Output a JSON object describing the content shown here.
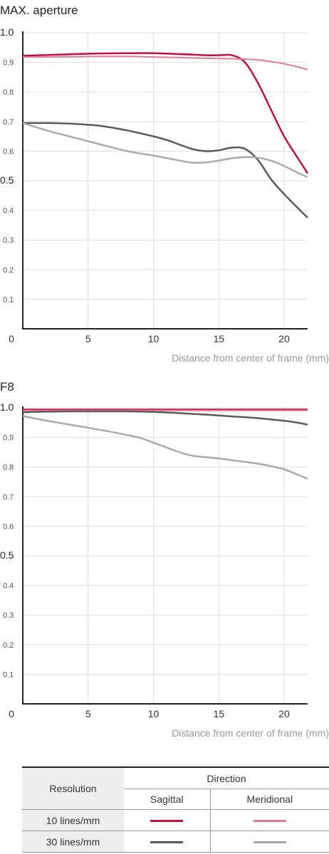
{
  "charts": [
    {
      "title": "MAX. aperture"
    },
    {
      "title": "F8"
    }
  ],
  "chart_data": [
    {
      "type": "line",
      "title": "MAX. aperture",
      "xlabel": "Distance from center of frame (mm)",
      "ylabel": "",
      "xlim": [
        0,
        21.8
      ],
      "ylim": [
        0,
        1.0
      ],
      "x_ticks": [
        "0",
        "5",
        "10",
        "15",
        "20"
      ],
      "y_ticks": [
        "0.1",
        "0.2",
        "0.3",
        "0.4",
        "0.5",
        "0.6",
        "0.7",
        "0.8",
        "0.9",
        "1.0"
      ],
      "series": [
        {
          "name": "10 lines/mm Sagittal",
          "color": "#c2103f",
          "width": 2.5,
          "x": [
            0,
            2,
            4,
            6,
            8,
            10,
            12,
            14,
            15,
            16,
            17,
            18,
            19,
            20,
            21,
            21.8
          ],
          "y": [
            0.922,
            0.925,
            0.928,
            0.93,
            0.931,
            0.931,
            0.928,
            0.924,
            0.924,
            0.924,
            0.9,
            0.83,
            0.74,
            0.65,
            0.58,
            0.525
          ]
        },
        {
          "name": "10 lines/mm Meridional",
          "color": "#e07a93",
          "width": 2,
          "x": [
            0,
            2,
            4,
            6,
            8,
            10,
            12,
            14,
            16,
            17,
            18,
            19,
            20,
            21,
            21.8
          ],
          "y": [
            0.918,
            0.918,
            0.919,
            0.92,
            0.92,
            0.918,
            0.916,
            0.914,
            0.912,
            0.911,
            0.908,
            0.903,
            0.895,
            0.885,
            0.875
          ]
        },
        {
          "name": "30 lines/mm Sagittal",
          "color": "#5a5a5a",
          "width": 2.5,
          "x": [
            0,
            2,
            4,
            6,
            8,
            10,
            11,
            12,
            13,
            14,
            15,
            16,
            17,
            18,
            19,
            20,
            21,
            21.8
          ],
          "y": [
            0.695,
            0.695,
            0.692,
            0.685,
            0.67,
            0.65,
            0.638,
            0.622,
            0.607,
            0.6,
            0.603,
            0.612,
            0.608,
            0.57,
            0.505,
            0.455,
            0.41,
            0.375
          ]
        },
        {
          "name": "30 lines/mm Meridional",
          "color": "#aaaaaa",
          "width": 2.5,
          "x": [
            0,
            2,
            4,
            6,
            8,
            10,
            12,
            13,
            14,
            15,
            16,
            17,
            18,
            19,
            20,
            21,
            21.8
          ],
          "y": [
            0.695,
            0.668,
            0.645,
            0.622,
            0.6,
            0.585,
            0.568,
            0.561,
            0.562,
            0.568,
            0.576,
            0.58,
            0.578,
            0.568,
            0.55,
            0.528,
            0.512
          ]
        }
      ]
    },
    {
      "type": "line",
      "title": "F8",
      "xlabel": "Distance from center of frame (mm)",
      "ylabel": "",
      "xlim": [
        0,
        21.8
      ],
      "ylim": [
        0,
        1.0
      ],
      "x_ticks": [
        "0",
        "5",
        "10",
        "15",
        "20"
      ],
      "y_ticks": [
        "0.1",
        "0.2",
        "0.3",
        "0.4",
        "0.5",
        "0.6",
        "0.7",
        "0.8",
        "0.9",
        "1.0"
      ],
      "series": [
        {
          "name": "10 lines/mm Sagittal",
          "color": "#c2103f",
          "width": 2.5,
          "x": [
            0,
            5,
            10,
            15,
            20,
            21.8
          ],
          "y": [
            0.994,
            0.994,
            0.994,
            0.994,
            0.994,
            0.994
          ]
        },
        {
          "name": "10 lines/mm Meridional",
          "color": "#e07a93",
          "width": 2,
          "x": [
            0,
            5,
            10,
            15,
            20,
            21.8
          ],
          "y": [
            0.991,
            0.991,
            0.991,
            0.991,
            0.991,
            0.991
          ]
        },
        {
          "name": "30 lines/mm Sagittal",
          "color": "#5a5a5a",
          "width": 2.5,
          "x": [
            0,
            2,
            4,
            6,
            8,
            10,
            12,
            14,
            16,
            18,
            20,
            21,
            21.8
          ],
          "y": [
            0.985,
            0.987,
            0.988,
            0.988,
            0.988,
            0.986,
            0.982,
            0.977,
            0.971,
            0.965,
            0.956,
            0.95,
            0.943
          ]
        },
        {
          "name": "30 lines/mm Meridional",
          "color": "#aaaaaa",
          "width": 2.5,
          "x": [
            0,
            2,
            4,
            6,
            8,
            9,
            10,
            12,
            13,
            14,
            15,
            16,
            18,
            19,
            20,
            21,
            21.8
          ],
          "y": [
            0.972,
            0.955,
            0.94,
            0.925,
            0.908,
            0.898,
            0.882,
            0.85,
            0.838,
            0.833,
            0.829,
            0.823,
            0.811,
            0.803,
            0.792,
            0.775,
            0.76
          ]
        }
      ]
    }
  ],
  "legend": {
    "resolution_label": "Resolution",
    "direction_label": "Direction",
    "sagittal_label": "Sagittal",
    "meridional_label": "Meridional",
    "rows": [
      {
        "label": "10 lines/mm",
        "sagittal_color": "#c2103f",
        "meridional_color": "#e07a93"
      },
      {
        "label": "30 lines/mm",
        "sagittal_color": "#5a5a5a",
        "meridional_color": "#aaaaaa"
      }
    ]
  }
}
